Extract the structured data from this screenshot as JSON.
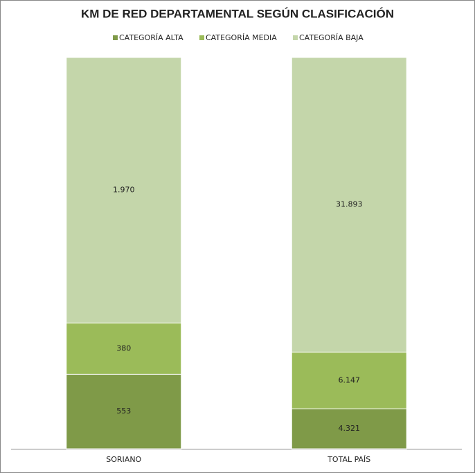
{
  "chart_data": {
    "type": "bar",
    "stack": "percent",
    "title": "KM DE RED DEPARTAMENTAL SEGÚN CLASIFICACIÓN",
    "categories": [
      "SORIANO",
      "TOTAL PAÍS"
    ],
    "series": [
      {
        "name": "CATEGORÍA ALTA",
        "color": "#7f9a48",
        "values": [
          553,
          4321
        ],
        "value_labels": [
          "553",
          "4.321"
        ]
      },
      {
        "name": "CATEGORÍA MEDIA",
        "color": "#9bbb59",
        "values": [
          380,
          6147
        ],
        "value_labels": [
          "380",
          "6.147"
        ]
      },
      {
        "name": "CATEGORÍA BAJA",
        "color": "#c4d6aa",
        "values": [
          1970,
          31893
        ],
        "value_labels": [
          "1.970",
          "31.893"
        ]
      }
    ],
    "legend": "top"
  }
}
